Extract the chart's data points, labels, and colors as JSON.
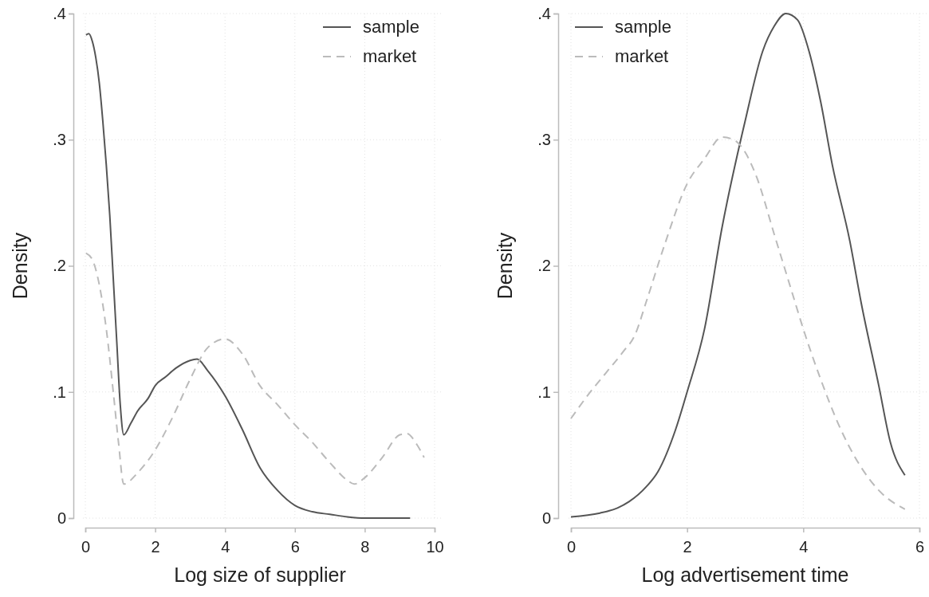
{
  "chart_data": [
    {
      "type": "line",
      "xlabel": "Log size of supplier",
      "ylabel": "Density",
      "xlim": [
        0,
        10
      ],
      "ylim": [
        0,
        0.4
      ],
      "xticks": [
        0,
        2,
        4,
        6,
        8,
        10
      ],
      "yticks": [
        0,
        {
          "value": 0.1,
          "label": ".1"
        },
        {
          "value": 0.2,
          "label": ".2"
        },
        {
          "value": 0.3,
          "label": ".3"
        },
        {
          "value": 0.4,
          "label": ".4"
        }
      ],
      "grid": true,
      "legend": "top right",
      "series": [
        {
          "name": "sample",
          "color": "#555555",
          "line_style": "solid",
          "x": [
            0.02,
            0.1,
            0.2,
            0.3,
            0.4,
            0.5,
            0.6,
            0.7,
            0.8,
            0.9,
            1.0,
            1.1,
            1.3,
            1.5,
            1.8,
            2.0,
            2.3,
            2.6,
            3.0,
            3.2,
            3.5,
            4.0,
            4.5,
            5.0,
            5.5,
            6.0,
            6.5,
            7.0,
            7.5,
            8.0,
            9.3
          ],
          "values": [
            0.383,
            0.384,
            0.378,
            0.365,
            0.345,
            0.315,
            0.28,
            0.24,
            0.19,
            0.14,
            0.09,
            0.066,
            0.075,
            0.085,
            0.095,
            0.105,
            0.112,
            0.119,
            0.125,
            0.126,
            0.117,
            0.097,
            0.07,
            0.04,
            0.022,
            0.01,
            0.005,
            0.003,
            0.001,
            0.0,
            0.0
          ]
        },
        {
          "name": "market",
          "color": "#bbbbbb",
          "line_style": "dashed",
          "x": [
            0.02,
            0.2,
            0.4,
            0.6,
            0.8,
            0.95,
            1.1,
            1.5,
            2.0,
            2.5,
            3.0,
            3.5,
            4.0,
            4.5,
            5.0,
            5.5,
            6.0,
            6.5,
            7.0,
            7.5,
            7.7,
            8.0,
            8.5,
            9.0,
            9.2,
            9.5,
            9.7
          ],
          "values": [
            0.21,
            0.205,
            0.185,
            0.15,
            0.1,
            0.06,
            0.027,
            0.036,
            0.054,
            0.08,
            0.11,
            0.135,
            0.142,
            0.13,
            0.105,
            0.09,
            0.074,
            0.06,
            0.044,
            0.03,
            0.027,
            0.032,
            0.048,
            0.066,
            0.067,
            0.058,
            0.048
          ]
        }
      ]
    },
    {
      "type": "line",
      "xlabel": "Log advertisement time",
      "ylabel": "Density",
      "xlim": [
        0,
        6
      ],
      "ylim": [
        0,
        0.4
      ],
      "xticks": [
        0,
        2,
        4,
        6
      ],
      "yticks": [
        0,
        {
          "value": 0.1,
          "label": ".1"
        },
        {
          "value": 0.2,
          "label": ".2"
        },
        {
          "value": 0.3,
          "label": ".3"
        },
        {
          "value": 0.4,
          "label": ".4"
        }
      ],
      "grid": true,
      "legend": "top left",
      "series": [
        {
          "name": "sample",
          "color": "#555555",
          "line_style": "solid",
          "x": [
            0,
            0.5,
            0.8,
            1.0,
            1.3,
            1.5,
            1.8,
            2.0,
            2.3,
            2.6,
            3.0,
            3.3,
            3.5,
            3.7,
            3.9,
            4.1,
            4.3,
            4.5,
            4.8,
            5.0,
            5.3,
            5.5,
            5.75
          ],
          "values": [
            0.001,
            0.004,
            0.008,
            0.013,
            0.025,
            0.037,
            0.07,
            0.1,
            0.15,
            0.23,
            0.315,
            0.37,
            0.39,
            0.4,
            0.395,
            0.37,
            0.33,
            0.28,
            0.22,
            0.17,
            0.105,
            0.06,
            0.034
          ]
        },
        {
          "name": "market",
          "color": "#bbbbbb",
          "line_style": "dashed",
          "x": [
            0,
            0.3,
            0.6,
            0.9,
            1.1,
            1.3,
            1.6,
            2.0,
            2.3,
            2.6,
            2.8,
            3.0,
            3.2,
            3.5,
            3.8,
            4.0,
            4.3,
            4.6,
            5.0,
            5.3,
            5.75
          ],
          "values": [
            0.079,
            0.098,
            0.115,
            0.132,
            0.145,
            0.172,
            0.215,
            0.265,
            0.285,
            0.302,
            0.3,
            0.29,
            0.27,
            0.225,
            0.18,
            0.15,
            0.11,
            0.075,
            0.04,
            0.022,
            0.007
          ]
        }
      ]
    }
  ]
}
